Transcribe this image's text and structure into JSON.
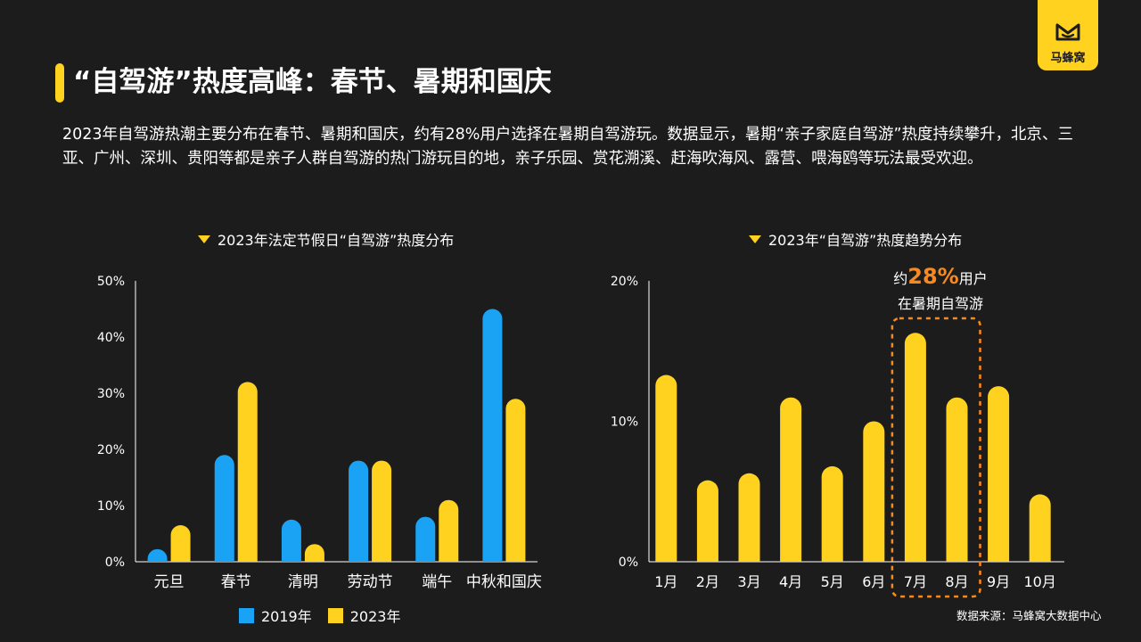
{
  "brand": {
    "name": "马蜂窝",
    "color": "#ffd21f"
  },
  "title": "“自驾游”热度高峰：春节、暑期和国庆",
  "description": "2023年自驾游热潮主要分布在春节、暑期和国庆，约有28%用户选择在暑期自驾游玩。数据显示，暑期“亲子家庭自驾游”热度持续攀升，北京、三亚、广州、深圳、贵阳等都是亲子人群自驾游的热门游玩目的地，亲子乐园、赏花溯溪、赶海吹海风、露营、喂海鸥等玩法最受欢迎。",
  "source": "数据来源：马蜂窝大数据中心",
  "callout": {
    "prefix": "约",
    "value": "28%",
    "suffix": "用户",
    "line2": "在暑期自驾游"
  },
  "chart_data": [
    {
      "type": "bar",
      "title": "2023年法定节假日“自驾游”热度分布",
      "categories": [
        "元旦",
        "春节",
        "清明",
        "劳动节",
        "端午",
        "中秋和国庆"
      ],
      "series": [
        {
          "name": "2019年",
          "color": "#1aa3f5",
          "values": [
            1,
            19,
            7.5,
            18,
            8,
            45
          ]
        },
        {
          "name": "2023年",
          "color": "#ffd21f",
          "values": [
            6.5,
            32,
            2.8,
            18,
            11,
            29
          ]
        }
      ],
      "ylim": [
        0,
        50
      ],
      "yticks": [
        "0%",
        "10%",
        "20%",
        "30%",
        "40%",
        "50%"
      ],
      "legend": "bottom"
    },
    {
      "type": "bar",
      "title": "2023年“自驾游”热度趋势分布",
      "categories": [
        "1月",
        "2月",
        "3月",
        "4月",
        "5月",
        "6月",
        "7月",
        "8月",
        "9月",
        "10月"
      ],
      "series": [
        {
          "color": "#ffd21f",
          "values": [
            13.3,
            5.8,
            6.3,
            11.7,
            6.8,
            10.0,
            16.3,
            11.7,
            12.5,
            4.8
          ]
        }
      ],
      "ylim": [
        0,
        20
      ],
      "yticks": [
        "0%",
        "10%",
        "20%"
      ],
      "highlight": [
        "7月",
        "8月"
      ],
      "highlight_color": "#f7891f"
    }
  ]
}
